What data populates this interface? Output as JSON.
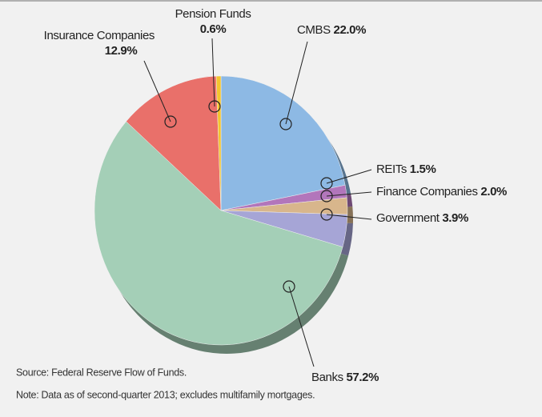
{
  "chart_data": {
    "type": "pie",
    "categories": [
      "CMBS",
      "REITs",
      "Finance Companies",
      "Government",
      "Banks",
      "Insurance Companies",
      "Pension Funds"
    ],
    "values": [
      22.0,
      1.5,
      2.0,
      3.9,
      57.2,
      12.9,
      0.6
    ],
    "value_labels": [
      "22.0%",
      "1.5%",
      "2.0%",
      "3.9%",
      "57.2%",
      "12.9%",
      "0.6%"
    ],
    "colors": [
      "#8db9e4",
      "#b276bb",
      "#d8b68c",
      "#a6a5d6",
      "#a4cfb7",
      "#e9706a",
      "#f4c42e"
    ],
    "notes": [
      "Source: Federal Reserve Flow of Funds.",
      "Note: Data as of second-quarter 2013; excludes multifamily mortgages."
    ]
  }
}
